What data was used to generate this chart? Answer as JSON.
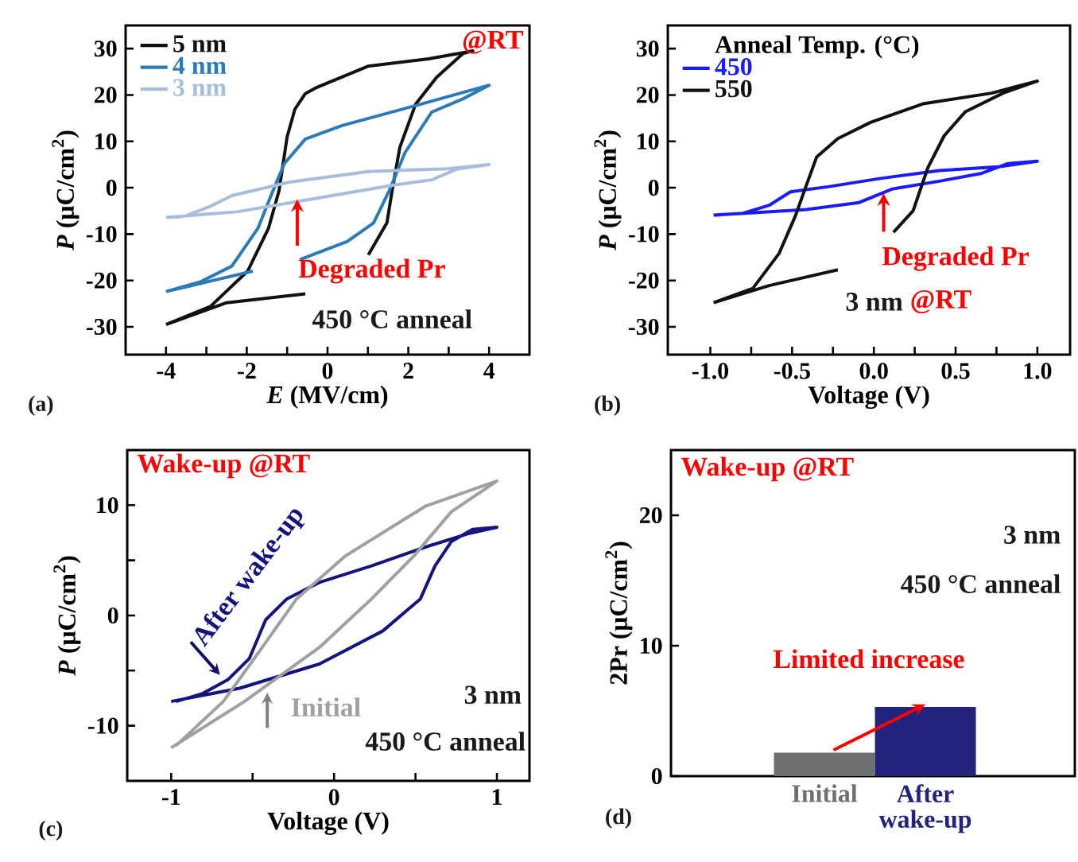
{
  "chart_data": [
    {
      "type": "line",
      "xlabel": "*E* (MV/cm)",
      "ylabel": "*P* (μC/cm$^{2}$)",
      "xlim": [
        -5,
        5
      ],
      "ylim": [
        -36,
        35
      ],
      "xticks": [
        -4,
        {
          "value": -3,
          "label": null
        },
        -2,
        {
          "value": -1,
          "label": null
        },
        0,
        {
          "value": 1,
          "label": null
        },
        2,
        {
          "value": 3,
          "label": null
        },
        4
      ],
      "yticks": [
        -30,
        -20,
        -10,
        0,
        10,
        20,
        30
      ],
      "legend": "top left",
      "annotations": [
        "@RT",
        {
          "text": "Degraded Pr",
          "x": -0.75,
          "y": -2.5
        },
        "450 °C anneal",
        "(a)"
      ],
      "series": [
        {
          "name": "5 nm",
          "color": "#111111",
          "x": [
            -4,
            -2.5,
            -0.55,
            0.2,
            1.01,
            1.47,
            1.6,
            1.79,
            2.18,
            2.7,
            3.36,
            3.6,
            2.5,
            1.0,
            -0.3,
            -0.55,
            -0.81,
            -1.0,
            -1.2,
            -1.46,
            -1.98,
            -2.9,
            -4
          ],
          "values": [
            -29.5,
            -24.8,
            -22.9,
            null,
            -14.5,
            -7.6,
            -0.6,
            8.7,
            18,
            23.8,
            29,
            29.5,
            27.8,
            26.2,
            21.5,
            20.3,
            16.9,
            11,
            -0.6,
            -8.7,
            -18,
            -25.6,
            -29.5
          ]
        },
        {
          "name": "4 nm",
          "color": "#2b7bb9",
          "x": [
            -4,
            -1.85,
            -1.2,
            -0.68,
            0.49,
            1.14,
            1.53,
            1.92,
            2.58,
            3.36,
            4.0,
            2.3,
            0.36,
            -0.55,
            -1.07,
            -1.4,
            -1.72,
            -2.37,
            -3.15,
            -4
          ],
          "values": [
            -22.4,
            -18,
            null,
            -15.5,
            -11.6,
            -7.6,
            -0.6,
            7.6,
            16.3,
            19.2,
            22.1,
            18,
            13.4,
            10.5,
            5.2,
            -1.7,
            -8.7,
            -16.9,
            -20.3,
            -22.4
          ]
        },
        {
          "name": "3 nm",
          "color": "#a6bddb",
          "x": [
            -4,
            -2.24,
            -0.29,
            1.66,
            2.58,
            3.23,
            4,
            2.97,
            1.01,
            -0.94,
            -2.37,
            -2.9,
            -3.54,
            -3.92
          ],
          "values": [
            -6.4,
            -5.2,
            -2.3,
            0.6,
            1.7,
            4.1,
            5,
            4.1,
            3.5,
            1.2,
            -1.7,
            -4,
            -6.2,
            -6.4
          ]
        }
      ]
    },
    {
      "type": "line",
      "xlabel": "Voltage (V)",
      "ylabel": "*P* (μC/cm$^{2}$)",
      "xlim": [
        -1.26,
        1.2
      ],
      "ylim": [
        -36,
        35
      ],
      "xticks": [
        {
          "value": -1,
          "label": "-1.0"
        },
        {
          "value": -0.75,
          "label": null
        },
        {
          "value": -0.5,
          "label": "-0.5"
        },
        {
          "value": -0.25,
          "label": null
        },
        {
          "value": 0,
          "label": "0.0"
        },
        {
          "value": 0.25,
          "label": null
        },
        {
          "value": 0.5,
          "label": "0.5"
        },
        {
          "value": 0.75,
          "label": null
        },
        {
          "value": 1,
          "label": "1.0"
        }
      ],
      "yticks": [
        -30,
        -20,
        -10,
        0,
        10,
        20,
        30
      ],
      "legend": "top left",
      "legend_title": "Anneal Temp. (°C)",
      "annotations": [
        {
          "text": "Degraded Pr",
          "x": 0.06,
          "y": -1.2
        },
        "3 nm",
        "@RT",
        "(b)"
      ],
      "series": [
        {
          "name": "450",
          "color": "#1a1aff",
          "x": [
            -0.98,
            -0.41,
            -0.09,
            0.11,
            0.4,
            0.66,
            0.82,
            1,
            0.76,
            0.4,
            0.04,
            -0.28,
            -0.51,
            -0.64,
            -0.8,
            -0.96
          ],
          "values": [
            -5.9,
            -4.7,
            -3.2,
            -0.3,
            1.4,
            3.1,
            5.2,
            5.7,
            4.5,
            3.7,
            2,
            0.2,
            -0.9,
            -3.8,
            -5.5,
            -5.9
          ]
        },
        {
          "name": "550",
          "color": "#111111",
          "x": [
            -0.98,
            -0.64,
            -0.22,
            -0.05,
            0.12,
            0.24,
            0.33,
            0.43,
            0.56,
            0.79,
            1,
            0.72,
            0.3,
            -0.02,
            -0.22,
            -0.35,
            -0.41,
            -0.48,
            -0.58,
            -0.74,
            -0.98
          ],
          "values": [
            -24.8,
            -21.1,
            -17.7,
            null,
            -9.6,
            -5,
            4.3,
            11.2,
            16.4,
            20.4,
            23,
            20.4,
            18.1,
            14.1,
            10.6,
            6.6,
            0.8,
            -6.1,
            -14.2,
            -21.7,
            -24.8
          ]
        }
      ]
    },
    {
      "type": "line",
      "xlabel": "Voltage (V)",
      "ylabel": "*P* (μC/cm$^{2}$)",
      "xlim": [
        -1.27,
        1.2
      ],
      "ylim": [
        -15,
        15
      ],
      "xticks": [
        -1,
        {
          "value": -0.5,
          "label": null
        },
        0,
        {
          "value": 0.5,
          "label": null
        },
        1
      ],
      "yticks": [
        -10,
        {
          "value": -5,
          "label": null
        },
        0,
        {
          "value": 5,
          "label": null
        },
        10
      ],
      "annotations": [
        "Wake-up @RT",
        "3 nm",
        "450 °C anneal",
        "(c)"
      ],
      "series": [
        {
          "name": "After wake-up",
          "color": "#141480",
          "x": [
            -1,
            -0.58,
            -0.09,
            0.3,
            0.53,
            0.62,
            0.72,
            0.85,
            1,
            0.82,
            0.56,
            0.23,
            -0.09,
            -0.29,
            -0.42,
            -0.52,
            -0.65,
            -0.81,
            -0.97
          ],
          "values": [
            -7.8,
            -6.6,
            -4.4,
            -1.4,
            1.5,
            4.5,
            6.7,
            7.8,
            8,
            7.4,
            6.2,
            4.5,
            3,
            1.5,
            -0.4,
            -3.9,
            -5.8,
            -7.1,
            -7.8
          ]
        },
        {
          "name": "Initial",
          "color": "#a0a0a0",
          "x": [
            -1,
            -0.55,
            -0.09,
            0.23,
            0.49,
            0.72,
            1,
            0.56,
            0.07,
            -0.23,
            -0.49,
            -0.68,
            -0.97
          ],
          "values": [
            -12,
            -7.8,
            -2.9,
            1.5,
            5.4,
            9.4,
            12.2,
            9.9,
            5.4,
            1.5,
            -3.9,
            -7.8,
            -11.8
          ]
        }
      ]
    },
    {
      "type": "bar",
      "ylabel": "2Pr (μC/cm$^{2}$)",
      "categories": [
        "Initial",
        "After wake-up"
      ],
      "values": [
        1.8,
        5.3
      ],
      "colors": [
        "#707070",
        "#23237e"
      ],
      "ylim": [
        0,
        25
      ],
      "yticks": [
        0,
        10,
        20
      ],
      "annotations": [
        "Wake-up @RT",
        "3 nm",
        "450 °C anneal",
        "Limited increase",
        "(d)"
      ]
    }
  ]
}
